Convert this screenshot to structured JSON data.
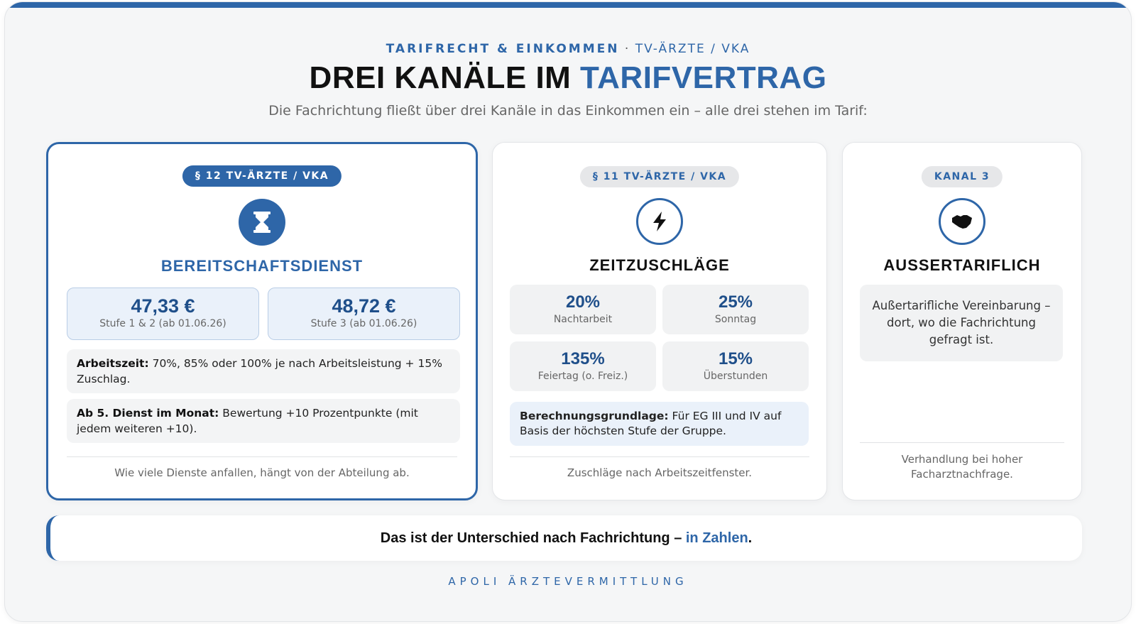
{
  "header": {
    "eyebrow_main": "TARIFRECHT & EINKOMMEN",
    "eyebrow_sep": " · ",
    "eyebrow_sub": "TV-ÄRZTE / VKA",
    "title_main": "DREI KANÄLE IM ",
    "title_accent": "TARIFVERTRAG",
    "subtitle": "Die Fachrichtung fließt über drei Kanäle in das Einkommen ein – alle drei stehen im Tarif:"
  },
  "cards": [
    {
      "badge": "§ 12 TV-ÄRZTE / VKA",
      "icon": "hourglass-icon",
      "title": "BEREITSCHAFTSDIENST",
      "prices": [
        {
          "value": "47,33 €",
          "label": "Stufe 1 & 2 (ab 01.06.26)"
        },
        {
          "value": "48,72 €",
          "label": "Stufe 3 (ab 01.06.26)"
        }
      ],
      "notes": [
        {
          "bold": "Arbeitszeit:",
          "text": " 70%, 85% oder 100% je nach Arbeitsleistung + 15% Zuschlag."
        },
        {
          "bold": "Ab 5. Dienst im Monat:",
          "text": " Bewertung +10 Prozentpunkte (mit jedem weiteren +10)."
        }
      ],
      "footnote": "Wie viele Dienste anfallen, hängt von der Abteilung ab."
    },
    {
      "badge": "§ 11 TV-ÄRZTE / VKA",
      "icon": "lightning-icon",
      "title": "ZEITZUSCHLÄGE",
      "stats": [
        {
          "value": "20%",
          "label": "Nachtarbeit"
        },
        {
          "value": "25%",
          "label": "Sonntag"
        },
        {
          "value": "135%",
          "label": "Feiertag (o. Freiz.)"
        },
        {
          "value": "15%",
          "label": "Überstunden"
        }
      ],
      "basis": {
        "bold": "Berechnungsgrundlage:",
        "text": " Für EG III und IV auf Basis der höchsten Stufe der Gruppe."
      },
      "footnote": "Zuschläge nach Arbeitszeitfenster."
    },
    {
      "badge": "KANAL 3",
      "icon": "handshake-icon",
      "title": "AUSSERTARIFLICH",
      "description": "Außertarifliche Vereinbarung – dort, wo die Fachrichtung gefragt ist.",
      "footnote": "Verhandlung bei hoher Facharztnachfrage."
    }
  ],
  "banner": {
    "text": "Das ist der Unterschied nach Fachrichtung – ",
    "accent": "in Zahlen",
    "end": "."
  },
  "brand": "APOLI ÄRZTEVERMITTLUNG",
  "colors": {
    "accent": "#2e66a8",
    "background": "#f5f6f7",
    "card": "#ffffff"
  }
}
